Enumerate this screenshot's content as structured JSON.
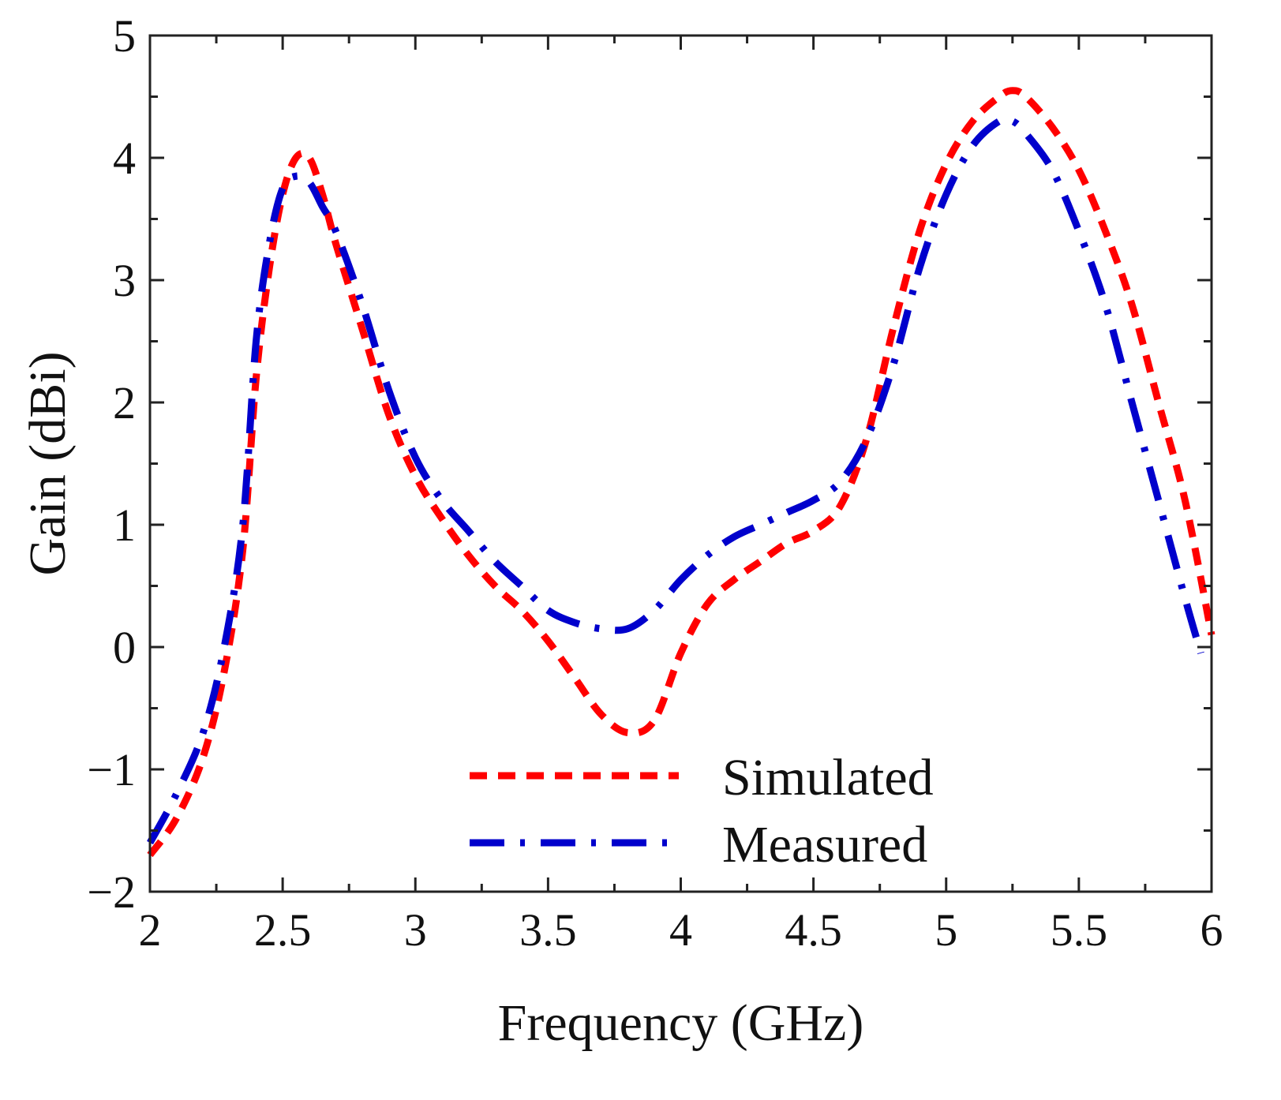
{
  "chart_data": {
    "type": "line",
    "title": "",
    "xlabel": "Frequency (GHz)",
    "ylabel": "Gain (dBi)",
    "xlim": [
      2,
      6
    ],
    "ylim": [
      -2,
      5
    ],
    "xticks": [
      2,
      2.5,
      3,
      3.5,
      4,
      4.5,
      5,
      5.5,
      6
    ],
    "xtick_labels": [
      "2",
      "2.5",
      "3",
      "3.5",
      "4",
      "4.5",
      "5",
      "5.5",
      "6"
    ],
    "yticks": [
      -2,
      -1,
      0,
      1,
      2,
      3,
      4,
      5
    ],
    "ytick_labels": [
      "−2",
      "−1",
      "0",
      "1",
      "2",
      "3",
      "4",
      "5"
    ],
    "grid": false,
    "legend_position": "bottom-center",
    "series": [
      {
        "name": "Simulated",
        "color": "#ff0000",
        "dash": "dashed",
        "x": [
          2.0,
          2.1,
          2.2,
          2.28,
          2.35,
          2.4,
          2.45,
          2.5,
          2.55,
          2.6,
          2.65,
          2.7,
          2.8,
          2.9,
          3.0,
          3.1,
          3.2,
          3.3,
          3.4,
          3.5,
          3.6,
          3.7,
          3.8,
          3.9,
          4.0,
          4.1,
          4.2,
          4.3,
          4.4,
          4.5,
          4.6,
          4.7,
          4.8,
          4.9,
          5.0,
          5.1,
          5.2,
          5.25,
          5.3,
          5.4,
          5.5,
          5.6,
          5.7,
          5.8,
          5.9,
          6.0
        ],
        "y": [
          -1.7,
          -1.4,
          -0.9,
          -0.2,
          0.8,
          2.2,
          3.1,
          3.7,
          4.0,
          4.0,
          3.7,
          3.3,
          2.6,
          1.9,
          1.4,
          1.05,
          0.75,
          0.5,
          0.3,
          0.05,
          -0.25,
          -0.55,
          -0.7,
          -0.6,
          -0.05,
          0.35,
          0.55,
          0.7,
          0.85,
          0.95,
          1.15,
          1.7,
          2.6,
          3.4,
          3.95,
          4.3,
          4.5,
          4.55,
          4.5,
          4.25,
          3.9,
          3.4,
          2.8,
          2.0,
          1.2,
          0.1
        ]
      },
      {
        "name": "Measured",
        "color": "#0000cc",
        "dash": "dash-dot",
        "x": [
          2.0,
          2.1,
          2.2,
          2.28,
          2.35,
          2.4,
          2.45,
          2.5,
          2.55,
          2.6,
          2.65,
          2.7,
          2.8,
          2.9,
          3.0,
          3.1,
          3.2,
          3.3,
          3.4,
          3.5,
          3.6,
          3.7,
          3.8,
          3.9,
          4.0,
          4.1,
          4.2,
          4.3,
          4.4,
          4.5,
          4.6,
          4.7,
          4.8,
          4.9,
          5.0,
          5.1,
          5.2,
          5.25,
          5.3,
          5.4,
          5.5,
          5.6,
          5.7,
          5.8,
          5.9,
          5.96
        ],
        "y": [
          -1.6,
          -1.2,
          -0.7,
          0.0,
          1.0,
          2.5,
          3.3,
          3.75,
          3.85,
          3.8,
          3.6,
          3.4,
          2.8,
          2.1,
          1.55,
          1.2,
          0.95,
          0.7,
          0.5,
          0.3,
          0.2,
          0.15,
          0.15,
          0.3,
          0.55,
          0.75,
          0.9,
          1.0,
          1.1,
          1.2,
          1.35,
          1.7,
          2.3,
          3.1,
          3.7,
          4.1,
          4.3,
          4.3,
          4.2,
          3.9,
          3.4,
          2.8,
          2.0,
          1.2,
          0.4,
          -0.05
        ]
      }
    ]
  }
}
